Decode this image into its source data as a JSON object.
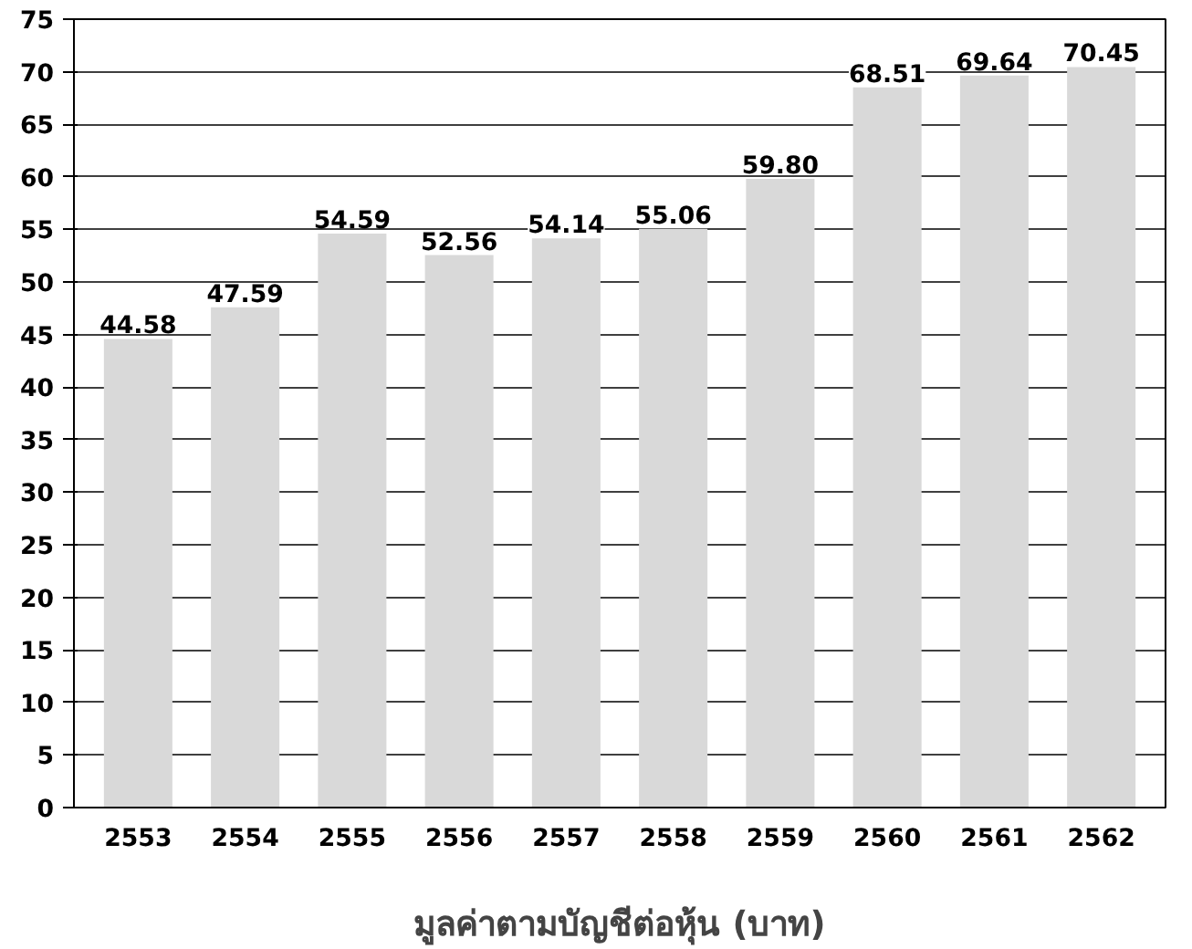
{
  "chart_data": {
    "type": "bar",
    "xlabel": "มูลค่าตามบัญชีต่อหุ้น (บาท)",
    "categories": [
      "2553",
      "2554",
      "2555",
      "2556",
      "2557",
      "2558",
      "2559",
      "2560",
      "2561",
      "2562"
    ],
    "values": [
      44.58,
      47.59,
      54.59,
      52.56,
      54.14,
      55.06,
      59.8,
      68.51,
      69.64,
      70.45
    ],
    "value_labels": [
      "44.58",
      "47.59",
      "54.59",
      "52.56",
      "54.14",
      "55.06",
      "59.80",
      "68.51",
      "69.64",
      "70.45"
    ],
    "color": "#d9d9d9",
    "ylim": [
      0,
      75
    ],
    "yticks": [
      0,
      5,
      10,
      15,
      20,
      25,
      30,
      35,
      40,
      45,
      50,
      55,
      60,
      65,
      70,
      75
    ],
    "grid": "y"
  }
}
